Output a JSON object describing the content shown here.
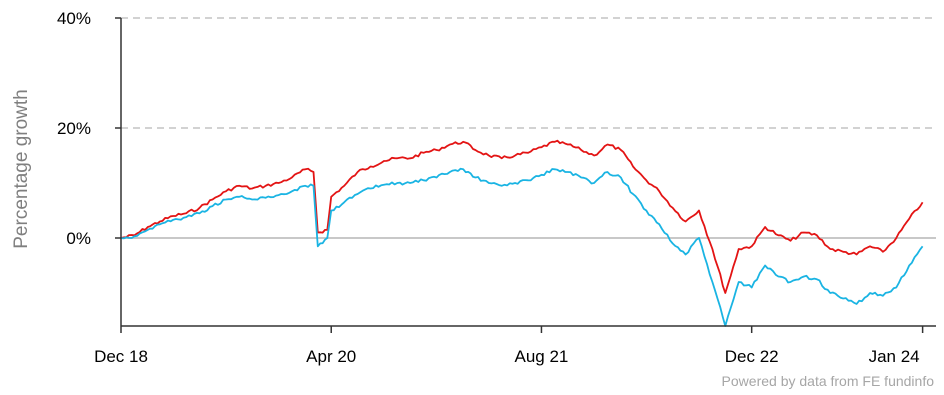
{
  "chart_data": {
    "type": "line",
    "ylabel": "Percentage growth",
    "credit": "Powered by data from FE fundinfo",
    "x_ticks": [
      "Dec 18",
      "Apr 20",
      "Aug 21",
      "Dec 22",
      "Jan 24"
    ],
    "x_tick_positions": [
      "2018-12",
      "2020-04",
      "2021-08",
      "2022-12",
      "2024-01"
    ],
    "y_ticks": [
      "40%",
      "20%",
      "0%"
    ],
    "y_tick_values": [
      40,
      20,
      0
    ],
    "ylim": [
      -16,
      40
    ],
    "grid": true,
    "series": [
      {
        "color": "#e31414",
        "points": [
          [
            "2018-12",
            0
          ],
          [
            "2019-01",
            0.5
          ],
          [
            "2019-02",
            2
          ],
          [
            "2019-03",
            3
          ],
          [
            "2019-04",
            4
          ],
          [
            "2019-05",
            4.5
          ],
          [
            "2019-06",
            5.5
          ],
          [
            "2019-07",
            7
          ],
          [
            "2019-08",
            8.5
          ],
          [
            "2019-09",
            9.5
          ],
          [
            "2019-10",
            9
          ],
          [
            "2019-11",
            9.5
          ],
          [
            "2019-12",
            10
          ],
          [
            "2020-01",
            11
          ],
          [
            "2020-02",
            12.5
          ],
          [
            "2020-02-20",
            12
          ],
          [
            "2020-03-01",
            1
          ],
          [
            "2020-03-23",
            1.5
          ],
          [
            "2020-04",
            7.5
          ],
          [
            "2020-05",
            9.5
          ],
          [
            "2020-06",
            12
          ],
          [
            "2020-07",
            13
          ],
          [
            "2020-08",
            14
          ],
          [
            "2020-09",
            14.5
          ],
          [
            "2020-10",
            14.5
          ],
          [
            "2020-11",
            15.5
          ],
          [
            "2020-12",
            16
          ],
          [
            "2021-01",
            17
          ],
          [
            "2021-02",
            17.5
          ],
          [
            "2021-03",
            16
          ],
          [
            "2021-04",
            15
          ],
          [
            "2021-05",
            14.5
          ],
          [
            "2021-06",
            15
          ],
          [
            "2021-07",
            15.5
          ],
          [
            "2021-08",
            16.5
          ],
          [
            "2021-09",
            17.5
          ],
          [
            "2021-10",
            17
          ],
          [
            "2021-11",
            16
          ],
          [
            "2021-12",
            15
          ],
          [
            "2022-01",
            17
          ],
          [
            "2022-02",
            16
          ],
          [
            "2022-03",
            13
          ],
          [
            "2022-04",
            10.5
          ],
          [
            "2022-05",
            8.5
          ],
          [
            "2022-06",
            5.5
          ],
          [
            "2022-07",
            3
          ],
          [
            "2022-08",
            5
          ],
          [
            "2022-09",
            -2
          ],
          [
            "2022-10",
            -10
          ],
          [
            "2022-11",
            -2
          ],
          [
            "2022-12",
            -1.5
          ],
          [
            "2023-01",
            2
          ],
          [
            "2023-02",
            0.5
          ],
          [
            "2023-03",
            -0.5
          ],
          [
            "2023-04",
            1
          ],
          [
            "2023-05",
            0.5
          ],
          [
            "2023-06",
            -2
          ],
          [
            "2023-07",
            -2.5
          ],
          [
            "2023-08",
            -3
          ],
          [
            "2023-09",
            -1.5
          ],
          [
            "2023-10",
            -2.5
          ],
          [
            "2023-11",
            0
          ],
          [
            "2023-12",
            3.5
          ],
          [
            "2024-01",
            6.5
          ]
        ]
      },
      {
        "color": "#1ab4e3",
        "points": [
          [
            "2018-12",
            0
          ],
          [
            "2019-01",
            0.3
          ],
          [
            "2019-02",
            1.5
          ],
          [
            "2019-03",
            2.5
          ],
          [
            "2019-04",
            3.3
          ],
          [
            "2019-05",
            3.8
          ],
          [
            "2019-06",
            4.5
          ],
          [
            "2019-07",
            5.8
          ],
          [
            "2019-08",
            7
          ],
          [
            "2019-09",
            7.5
          ],
          [
            "2019-10",
            7
          ],
          [
            "2019-11",
            7.3
          ],
          [
            "2019-12",
            7.8
          ],
          [
            "2020-01",
            8.5
          ],
          [
            "2020-02",
            9.5
          ],
          [
            "2020-02-20",
            9.5
          ],
          [
            "2020-03-01",
            -1.5
          ],
          [
            "2020-03-23",
            0
          ],
          [
            "2020-04",
            5
          ],
          [
            "2020-05",
            6.5
          ],
          [
            "2020-06",
            8
          ],
          [
            "2020-07",
            9
          ],
          [
            "2020-08",
            9.7
          ],
          [
            "2020-09",
            10
          ],
          [
            "2020-10",
            10
          ],
          [
            "2020-11",
            10.5
          ],
          [
            "2020-12",
            11
          ],
          [
            "2021-01",
            12
          ],
          [
            "2021-02",
            12.5
          ],
          [
            "2021-03",
            11
          ],
          [
            "2021-04",
            10
          ],
          [
            "2021-05",
            9.5
          ],
          [
            "2021-06",
            10
          ],
          [
            "2021-07",
            10.5
          ],
          [
            "2021-08",
            11.5
          ],
          [
            "2021-09",
            12.5
          ],
          [
            "2021-10",
            12
          ],
          [
            "2021-11",
            11
          ],
          [
            "2021-12",
            10
          ],
          [
            "2022-01",
            12
          ],
          [
            "2022-02",
            11
          ],
          [
            "2022-03",
            8
          ],
          [
            "2022-04",
            5
          ],
          [
            "2022-05",
            2.5
          ],
          [
            "2022-06",
            -1
          ],
          [
            "2022-07",
            -3
          ],
          [
            "2022-08",
            0
          ],
          [
            "2022-09",
            -8
          ],
          [
            "2022-10",
            -16
          ],
          [
            "2022-11",
            -8
          ],
          [
            "2022-12",
            -9
          ],
          [
            "2023-01",
            -5
          ],
          [
            "2023-02",
            -7
          ],
          [
            "2023-03",
            -8
          ],
          [
            "2023-04",
            -7
          ],
          [
            "2023-05",
            -7.5
          ],
          [
            "2023-06",
            -10
          ],
          [
            "2023-07",
            -11
          ],
          [
            "2023-08",
            -12
          ],
          [
            "2023-09",
            -10
          ],
          [
            "2023-10",
            -10.5
          ],
          [
            "2023-11",
            -9
          ],
          [
            "2023-12",
            -5
          ],
          [
            "2024-01",
            -1.5
          ]
        ]
      }
    ]
  }
}
